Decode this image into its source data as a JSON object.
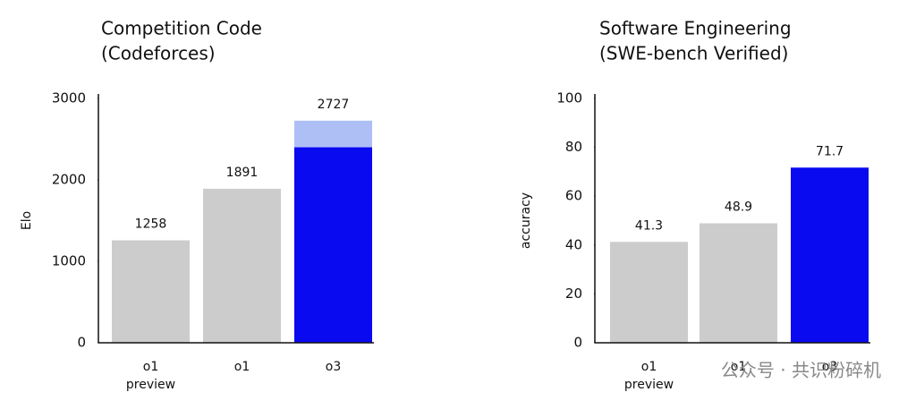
{
  "chart_data": [
    {
      "type": "bar",
      "title": [
        "Competition Code",
        "(Codeforces)"
      ],
      "ylabel": "Elo",
      "categories": [
        "o1 preview",
        "o1",
        "o3"
      ],
      "values": [
        1258,
        1891,
        2727
      ],
      "colors": [
        "#cccccc",
        "#cccccc",
        "#aebff5"
      ],
      "highlight_values": [
        null,
        null,
        2400
      ],
      "highlight_color": "#0a0af0",
      "ylim": [
        0,
        3000
      ],
      "yticks": [
        0,
        1000,
        2000,
        3000
      ]
    },
    {
      "type": "bar",
      "title": [
        "Software Engineering",
        "(SWE-bench Verified)"
      ],
      "ylabel": "accuracy",
      "categories": [
        "o1 preview",
        "o1",
        "o3"
      ],
      "values": [
        41.3,
        48.9,
        71.7
      ],
      "colors": [
        "#cccccc",
        "#cccccc",
        "#0a0af0"
      ],
      "ylim": [
        0,
        100
      ],
      "yticks": [
        0,
        20,
        40,
        60,
        80,
        100
      ]
    }
  ],
  "watermark": "公众号 · 共识粉碎机"
}
